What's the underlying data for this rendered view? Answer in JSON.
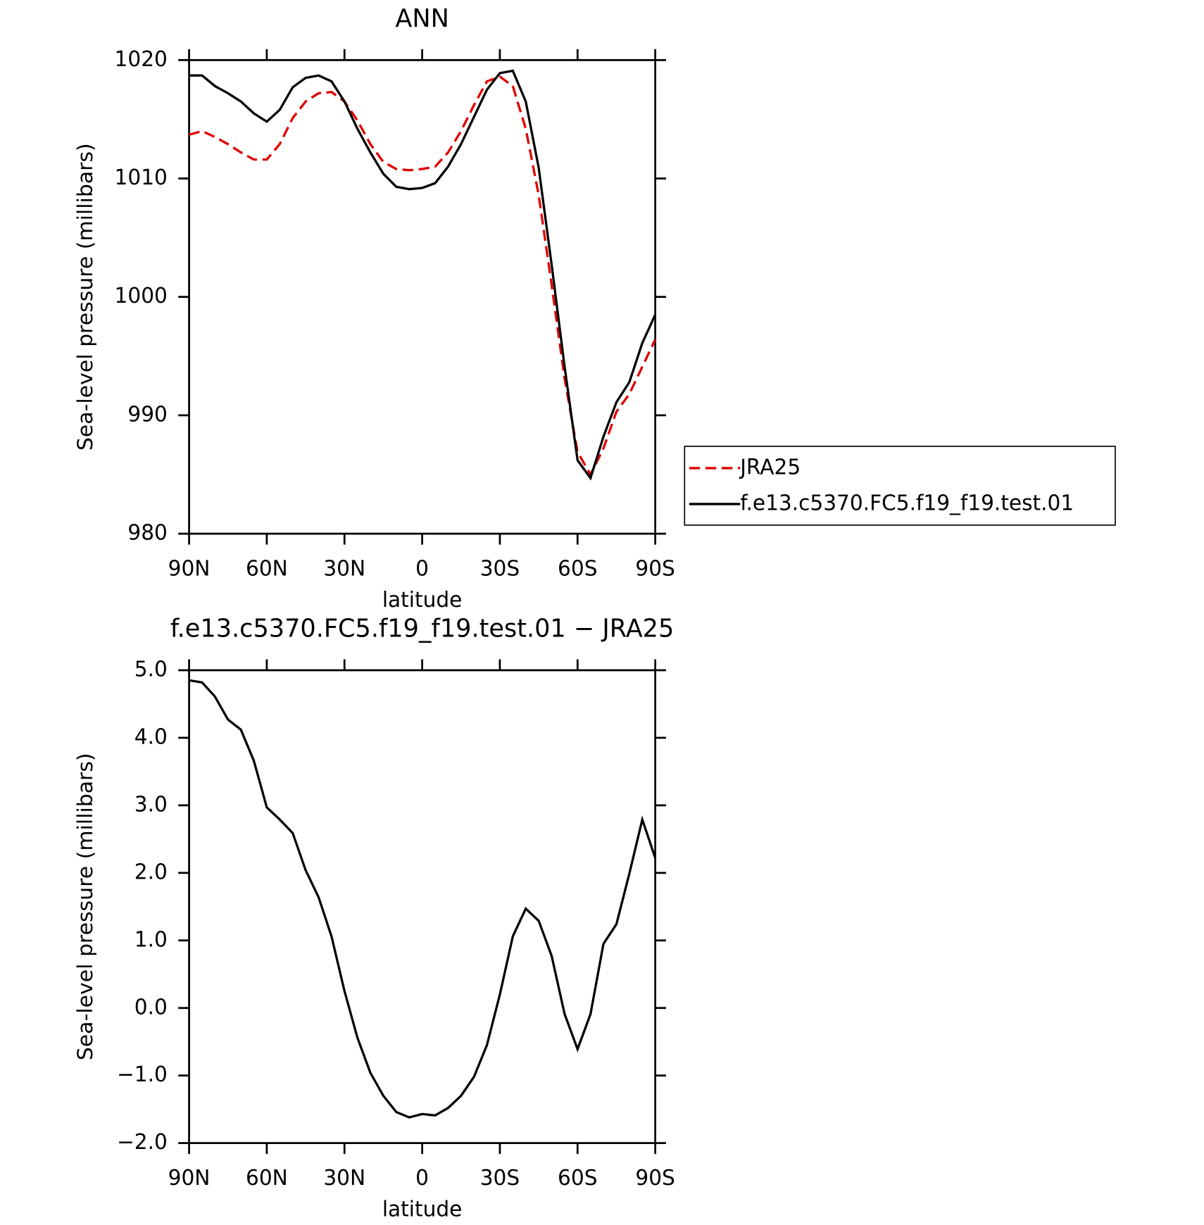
{
  "chart_data": [
    {
      "type": "line",
      "title": "ANN",
      "xlabel": "latitude",
      "ylabel": "Sea-level pressure (millibars)",
      "x": [
        90,
        85,
        80,
        75,
        70,
        65,
        60,
        55,
        50,
        45,
        40,
        35,
        30,
        25,
        20,
        15,
        10,
        5,
        0,
        -5,
        -10,
        -15,
        -20,
        -25,
        -30,
        -35,
        -40,
        -45,
        -50,
        -55,
        -60,
        -65,
        -70,
        -75,
        -80,
        -85,
        -90
      ],
      "xlim": [
        90,
        -90
      ],
      "xticks": [
        {
          "value": 90,
          "label": "90N"
        },
        {
          "value": 60,
          "label": "60N"
        },
        {
          "value": 30,
          "label": "30N"
        },
        0,
        {
          "value": -30,
          "label": "30S"
        },
        {
          "value": -60,
          "label": "60S"
        },
        {
          "value": -90,
          "label": "90S"
        }
      ],
      "ylim": [
        980,
        1020
      ],
      "yticks": [
        980,
        990,
        1000,
        1010,
        1020
      ],
      "legend": "right",
      "series": [
        {
          "name": "JRA25",
          "color": "#e00000",
          "dash": true,
          "values": [
            1013.7,
            1014.0,
            1013.5,
            1012.9,
            1012.2,
            1011.6,
            1011.6,
            1012.9,
            1015.1,
            1016.5,
            1017.2,
            1017.3,
            1016.5,
            1014.9,
            1012.9,
            1011.4,
            1010.8,
            1010.7,
            1010.8,
            1011.0,
            1012.2,
            1014.0,
            1016.2,
            1018.2,
            1018.6,
            1017.8,
            1014.2,
            1008.6,
            1001.0,
            993.1,
            986.9,
            985.0,
            987.2,
            990.3,
            991.8,
            994.1,
            996.4
          ]
        },
        {
          "name": "f.e13.c5370.FC5.f19_f19.test.01",
          "color": "#000000",
          "dash": false,
          "values": [
            1018.7,
            1018.7,
            1017.8,
            1017.2,
            1016.5,
            1015.5,
            1014.8,
            1015.8,
            1017.7,
            1018.5,
            1018.7,
            1018.2,
            1016.5,
            1014.2,
            1012.2,
            1010.4,
            1009.3,
            1009.1,
            1009.2,
            1009.6,
            1011.0,
            1012.9,
            1015.2,
            1017.5,
            1018.9,
            1019.1,
            1016.5,
            1010.9,
            1002.7,
            994.1,
            986.2,
            984.7,
            988.2,
            991.1,
            992.8,
            996.1,
            998.5
          ]
        }
      ]
    },
    {
      "type": "line",
      "title": "f.e13.c5370.FC5.f19_f19.test.01 − JRA25",
      "xlabel": "latitude",
      "ylabel": "Sea-level pressure (millibars)",
      "x": [
        90,
        85,
        80,
        75,
        70,
        65,
        60,
        55,
        50,
        45,
        40,
        35,
        30,
        25,
        20,
        15,
        10,
        5,
        0,
        -5,
        -10,
        -15,
        -20,
        -25,
        -30,
        -35,
        -40,
        -45,
        -50,
        -55,
        -60,
        -65,
        -70,
        -75,
        -80,
        -85,
        -90
      ],
      "xlim": [
        90,
        -90
      ],
      "xticks": [
        {
          "value": 90,
          "label": "90N"
        },
        {
          "value": 60,
          "label": "60N"
        },
        {
          "value": 30,
          "label": "30N"
        },
        0,
        {
          "value": -30,
          "label": "30S"
        },
        {
          "value": -60,
          "label": "60S"
        },
        {
          "value": -90,
          "label": "90S"
        }
      ],
      "ylim": [
        -2,
        5
      ],
      "yticks": [
        {
          "value": -2,
          "label": "−2.0"
        },
        {
          "value": -1,
          "label": "−1.0"
        },
        {
          "value": 0,
          "label": "0.0"
        },
        {
          "value": 1,
          "label": "1.0"
        },
        {
          "value": 2,
          "label": "2.0"
        },
        {
          "value": 3,
          "label": "3.0"
        },
        {
          "value": 4,
          "label": "4.0"
        },
        {
          "value": 5,
          "label": "5.0"
        }
      ],
      "series": [
        {
          "color": "#000000",
          "dash": false,
          "values": [
            4.85,
            4.82,
            4.61,
            4.27,
            4.12,
            3.66,
            2.97,
            2.79,
            2.59,
            2.04,
            1.64,
            1.06,
            0.25,
            -0.44,
            -0.96,
            -1.3,
            -1.54,
            -1.62,
            -1.57,
            -1.59,
            -1.48,
            -1.3,
            -1.02,
            -0.55,
            0.2,
            1.06,
            1.47,
            1.29,
            0.77,
            -0.09,
            -0.61,
            -0.09,
            0.95,
            1.24,
            1.99,
            2.79,
            2.22
          ]
        }
      ]
    }
  ]
}
